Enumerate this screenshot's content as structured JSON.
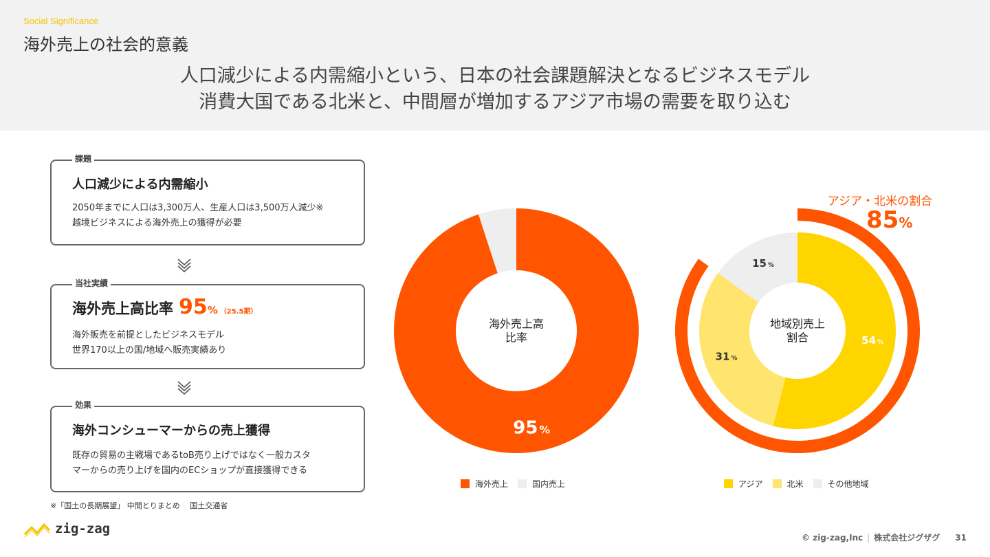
{
  "header": {
    "kicker": "Social Significance",
    "title": "海外売上の社会的意義",
    "headline_lines": [
      "人口減少による内需縮小という、日本の社会課題解決となるビジネスモデル",
      "消費大国である北米と、中間層が増加するアジア市場の需要を取り込む"
    ]
  },
  "cards": [
    {
      "tag": "課題",
      "title": "人口減少による内需縮小",
      "body": [
        "2050年までに人口は3,300万人、生産人口は3,500万人減少※",
        "越境ビジネスによる海外売上の獲得が必要"
      ]
    },
    {
      "tag": "当社実績",
      "title": "海外売上高比率",
      "value": "95",
      "unit": "%",
      "note": "（25.5期）",
      "body": [
        "海外販売を前提としたビジネスモデル",
        "世界170以上の国/地域へ販売実績あり"
      ]
    },
    {
      "tag": "効果",
      "title": "海外コンシューマーからの売上獲得",
      "body": [
        "既存の貿易の主戦場であるtoB売り上げではなく一般カスタ",
        "マーからの売り上げを国内のECショップが直接獲得できる"
      ]
    }
  ],
  "footnote": "※「国土の長期展望」 中間とりまとめ　 国土交通省",
  "logo": {
    "text": "zig-zag"
  },
  "footer": {
    "copyright": "© zig-zag,Inc",
    "company": "株式会社ジグザグ",
    "page": "31"
  },
  "colors": {
    "orange": "#ff5500",
    "yellow": "#ffd500",
    "light_yellow": "#ffe56e",
    "gray": "#eeeeee"
  },
  "chart_data": [
    {
      "type": "pie",
      "center_label": [
        "海外売上高",
        "比率"
      ],
      "categories": [
        "海外売上",
        "国内売上"
      ],
      "values": [
        95,
        5
      ],
      "data_labels": [
        "95",
        ""
      ],
      "unit": "%",
      "colors": [
        "#ff5500",
        "#eeeeee"
      ],
      "legend": [
        "海外売上",
        "国内売上"
      ]
    },
    {
      "type": "pie",
      "center_label": [
        "地域別売上",
        "割合"
      ],
      "categories": [
        "アジア",
        "北米",
        "その他地域"
      ],
      "values": [
        54,
        31,
        15
      ],
      "data_labels": [
        "54",
        "31",
        "15"
      ],
      "unit": "%",
      "colors": [
        "#ffd500",
        "#ffe56e",
        "#eeeeee"
      ],
      "legend": [
        "アジア",
        "北米",
        "その他地域"
      ],
      "highlight": {
        "label": "アジア・北米の割合",
        "value": 85,
        "unit": "%"
      }
    }
  ]
}
